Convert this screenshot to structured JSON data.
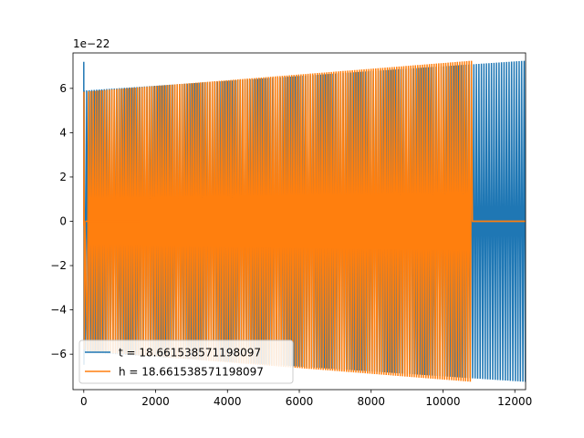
{
  "chart_data": {
    "type": "line",
    "title": "",
    "xlabel": "",
    "ylabel": "",
    "offset_text": "1e−22",
    "xlim": [
      -300,
      12300
    ],
    "ylim": [
      -7.6,
      7.6
    ],
    "y_scale_exponent": -22,
    "xticks": [
      0,
      2000,
      4000,
      6000,
      8000,
      10000,
      12000
    ],
    "xtick_labels": [
      "0",
      "2000",
      "4000",
      "6000",
      "8000",
      "10000",
      "12000"
    ],
    "yticks": [
      -6,
      -4,
      -2,
      0,
      2,
      4,
      6
    ],
    "ytick_labels": [
      "−6",
      "−4",
      "−2",
      "0",
      "2",
      "4",
      "6"
    ],
    "grid": false,
    "legend_position": "lower-left",
    "series": [
      {
        "name": "t = 18.661538571198097",
        "color": "#1f77b4",
        "x_start": 0,
        "x_end": 12300,
        "amplitude_start": 5.9,
        "amplitude_end": 7.25,
        "initial_spike": 7.2,
        "description_values": {
          "active_range": [
            0,
            12300
          ]
        }
      },
      {
        "name": "h = 18.661538571198097",
        "color": "#ff7f0e",
        "x_start": 0,
        "x_end": 10820,
        "amplitude_start": 5.85,
        "amplitude_end": 7.25,
        "flat_segments": [
          [
            50,
            1550
          ],
          [
            10820,
            12300
          ]
        ],
        "description_values": {
          "active_range": [
            0,
            10820
          ]
        }
      }
    ]
  }
}
